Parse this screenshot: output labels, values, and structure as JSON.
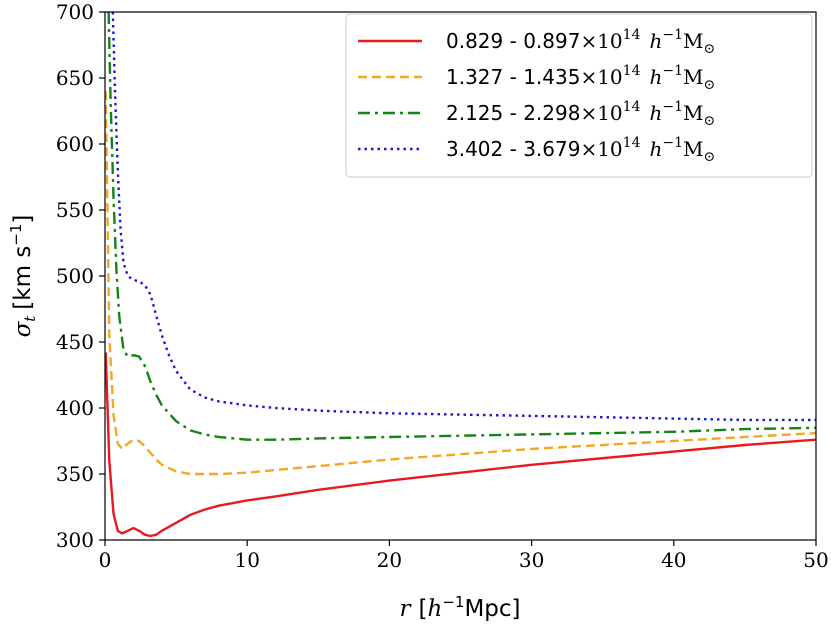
{
  "chart_data": {
    "type": "line",
    "title": "",
    "xlabel_var": "r",
    "xlabel_unit_open": "[",
    "xlabel_unit_h": "h",
    "xlabel_unit_exp": "−1",
    "xlabel_unit_rest": "Mpc]",
    "ylabel_var": "σ",
    "ylabel_sub": "t",
    "ylabel_unit": "[km s",
    "ylabel_unit_exp": "−1",
    "ylabel_unit_close": "]",
    "xlim": [
      0,
      50
    ],
    "ylim": [
      300,
      700
    ],
    "xticks": [
      0,
      10,
      20,
      30,
      40,
      50
    ],
    "xtick_labels": [
      "0",
      "10",
      "20",
      "30",
      "40",
      "50"
    ],
    "yticks": [
      300,
      350,
      400,
      450,
      500,
      550,
      600,
      650,
      700
    ],
    "ytick_labels": [
      "300",
      "350",
      "400",
      "450",
      "500",
      "550",
      "600",
      "650",
      "700"
    ],
    "legend_position": "top-right",
    "legend_unit": {
      "times": "×10",
      "exp14": "14",
      "h": "h",
      "exp_m1": "−1",
      "M": "M",
      "sun": "⊙"
    },
    "series": [
      {
        "name": "0.829 - 0.897",
        "color": "#e8191f",
        "dash": "solid",
        "x": [
          0.05,
          0.3,
          0.6,
          0.9,
          1.2,
          1.6,
          2.0,
          2.4,
          2.8,
          3.2,
          3.6,
          4.0,
          5.0,
          6.0,
          7.0,
          8.0,
          10.0,
          12.0,
          15.0,
          20.0,
          25.0,
          30.0,
          35.0,
          40.0,
          45.0,
          50.0
        ],
        "y": [
          442,
          360,
          320,
          307,
          305,
          307,
          309,
          307,
          304,
          303,
          304,
          307,
          313,
          319,
          323,
          326,
          330,
          333,
          338,
          345,
          351,
          357,
          362,
          367,
          372,
          376
        ]
      },
      {
        "name": "1.327 - 1.435",
        "color": "#f5a623",
        "dash": "dashed",
        "x": [
          0.05,
          0.3,
          0.6,
          0.9,
          1.2,
          1.6,
          2.0,
          2.4,
          2.8,
          3.2,
          3.6,
          4.0,
          5.0,
          6.0,
          7.0,
          8.0,
          10.0,
          12.0,
          15.0,
          20.0,
          25.0,
          30.0,
          35.0,
          40.0,
          45.0,
          50.0
        ],
        "y": [
          640,
          455,
          395,
          373,
          369,
          373,
          376,
          375,
          371,
          366,
          361,
          357,
          352,
          350,
          350,
          350,
          351,
          353,
          356,
          361,
          365,
          369,
          372,
          375,
          378,
          381
        ]
      },
      {
        "name": "2.125 - 2.298",
        "color": "#168316",
        "dash": "dashdot",
        "x": [
          0.25,
          0.4,
          0.6,
          0.8,
          1.0,
          1.3,
          1.6,
          2.0,
          2.4,
          2.8,
          3.2,
          3.6,
          4.0,
          5.0,
          6.0,
          7.0,
          8.0,
          10.0,
          12.0,
          15.0,
          20.0,
          25.0,
          30.0,
          35.0,
          40.0,
          45.0,
          50.0
        ],
        "y": [
          700,
          630,
          560,
          505,
          470,
          444,
          439,
          440,
          439,
          432,
          420,
          410,
          402,
          390,
          383,
          380,
          378,
          376,
          376,
          377,
          378,
          379,
          380,
          381,
          382,
          384,
          385
        ]
      },
      {
        "name": "3.402 - 3.679",
        "color": "#1a1ad6",
        "dash": "dotted",
        "x": [
          0.55,
          0.7,
          0.9,
          1.1,
          1.3,
          1.6,
          2.0,
          2.4,
          2.8,
          3.2,
          3.6,
          4.0,
          4.5,
          5.0,
          6.0,
          7.0,
          8.0,
          10.0,
          12.0,
          15.0,
          20.0,
          25.0,
          30.0,
          35.0,
          40.0,
          45.0,
          50.0
        ],
        "y": [
          700,
          640,
          580,
          535,
          510,
          500,
          497,
          496,
          493,
          486,
          470,
          455,
          440,
          428,
          414,
          408,
          405,
          402,
          400,
          398,
          396,
          395,
          394,
          393,
          392,
          391,
          391
        ]
      }
    ]
  }
}
